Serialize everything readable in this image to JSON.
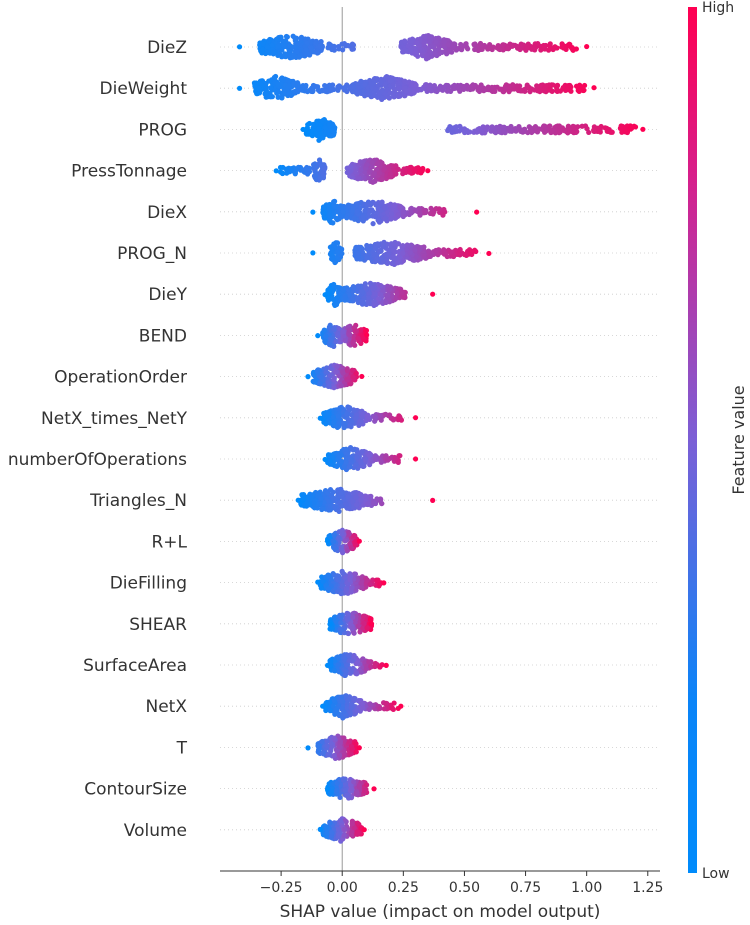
{
  "chart_data": {
    "type": "scatter",
    "subtype": "shap-beeswarm-summary",
    "xlabel": "SHAP value (impact on model output)",
    "xlim": [
      -0.5,
      1.3
    ],
    "xticks": [
      -0.25,
      0.0,
      0.25,
      0.5,
      0.75,
      1.0,
      1.25
    ],
    "xtick_labels": [
      "−0.25",
      "0.00",
      "0.25",
      "0.50",
      "0.75",
      "1.00",
      "1.25"
    ],
    "zero_line": true,
    "row_gridlines": "dotted",
    "colorbar": {
      "label": "Feature value",
      "high_label": "High",
      "low_label": "Low",
      "low_color": "#008bfb",
      "high_color": "#ff0052",
      "placement": "right"
    },
    "features": [
      {
        "name": "DieZ",
        "min": -0.42,
        "max": 1.0,
        "dense_ranges": [
          [
            -0.34,
            -0.08
          ],
          [
            0.24,
            0.45
          ]
        ],
        "sparse_ranges": [
          [
            0.45,
            0.96
          ],
          [
            -0.06,
            0.05
          ]
        ]
      },
      {
        "name": "DieWeight",
        "min": -0.42,
        "max": 1.03,
        "dense_ranges": [
          [
            -0.36,
            -0.18
          ],
          [
            0.05,
            0.3
          ]
        ],
        "sparse_ranges": [
          [
            0.3,
            1.0
          ],
          [
            -0.18,
            0.05
          ]
        ]
      },
      {
        "name": "PROG",
        "min": -0.16,
        "max": 1.23,
        "dense_ranges": [
          [
            -0.15,
            -0.03
          ]
        ],
        "sparse_ranges": [
          [
            0.43,
            1.2
          ]
        ]
      },
      {
        "name": "PressTonnage",
        "min": -0.27,
        "max": 0.35,
        "dense_ranges": [
          [
            -0.12,
            -0.07
          ],
          [
            0.02,
            0.22
          ]
        ],
        "sparse_ranges": [
          [
            -0.26,
            -0.13
          ],
          [
            0.22,
            0.33
          ]
        ]
      },
      {
        "name": "DieX",
        "min": -0.12,
        "max": 0.55,
        "dense_ranges": [
          [
            -0.08,
            0.0
          ],
          [
            0.0,
            0.25
          ]
        ],
        "sparse_ranges": [
          [
            0.25,
            0.42
          ]
        ]
      },
      {
        "name": "PROG_N",
        "min": -0.12,
        "max": 0.6,
        "dense_ranges": [
          [
            -0.05,
            0.0
          ],
          [
            0.05,
            0.35
          ]
        ],
        "sparse_ranges": [
          [
            0.35,
            0.55
          ]
        ]
      },
      {
        "name": "DieY",
        "min": -0.07,
        "max": 0.37,
        "dense_ranges": [
          [
            -0.06,
            0.0
          ],
          [
            0.0,
            0.24
          ]
        ],
        "sparse_ranges": [
          [
            0.24,
            0.26
          ]
        ]
      },
      {
        "name": "BEND",
        "min": -0.1,
        "max": 0.1,
        "dense_ranges": [
          [
            -0.08,
            0.0
          ],
          [
            0.0,
            0.1
          ]
        ],
        "sparse_ranges": []
      },
      {
        "name": "OperationOrder",
        "min": -0.14,
        "max": 0.08,
        "dense_ranges": [
          [
            -0.12,
            0.06
          ]
        ],
        "sparse_ranges": []
      },
      {
        "name": "NetX_times_NetY",
        "min": -0.09,
        "max": 0.3,
        "dense_ranges": [
          [
            -0.08,
            0.1
          ]
        ],
        "sparse_ranges": [
          [
            0.1,
            0.25
          ]
        ]
      },
      {
        "name": "numberOfOperations",
        "min": -0.07,
        "max": 0.3,
        "dense_ranges": [
          [
            -0.06,
            0.12
          ]
        ],
        "sparse_ranges": [
          [
            0.12,
            0.24
          ]
        ]
      },
      {
        "name": "Triangles_N",
        "min": -0.18,
        "max": 0.37,
        "dense_ranges": [
          [
            -0.17,
            0.12
          ]
        ],
        "sparse_ranges": [
          [
            0.12,
            0.17
          ]
        ]
      },
      {
        "name": "R+L",
        "min": -0.06,
        "max": 0.07,
        "dense_ranges": [
          [
            -0.06,
            0.06
          ]
        ],
        "sparse_ranges": []
      },
      {
        "name": "DieFilling",
        "min": -0.1,
        "max": 0.17,
        "dense_ranges": [
          [
            -0.09,
            0.1
          ]
        ],
        "sparse_ranges": [
          [
            0.1,
            0.16
          ]
        ]
      },
      {
        "name": "SHEAR",
        "min": -0.05,
        "max": 0.12,
        "dense_ranges": [
          [
            -0.05,
            0.12
          ]
        ],
        "sparse_ranges": []
      },
      {
        "name": "SurfaceArea",
        "min": -0.06,
        "max": 0.18,
        "dense_ranges": [
          [
            -0.05,
            0.1
          ]
        ],
        "sparse_ranges": [
          [
            0.1,
            0.17
          ]
        ]
      },
      {
        "name": "NetX",
        "min": -0.08,
        "max": 0.24,
        "dense_ranges": [
          [
            -0.07,
            0.08
          ]
        ],
        "sparse_ranges": [
          [
            0.08,
            0.23
          ]
        ]
      },
      {
        "name": "T",
        "min": -0.14,
        "max": 0.07,
        "dense_ranges": [
          [
            -0.1,
            0.06
          ]
        ],
        "sparse_ranges": []
      },
      {
        "name": "ContourSize",
        "min": -0.06,
        "max": 0.13,
        "dense_ranges": [
          [
            -0.06,
            0.1
          ]
        ],
        "sparse_ranges": []
      },
      {
        "name": "Volume",
        "min": -0.09,
        "max": 0.09,
        "dense_ranges": [
          [
            -0.08,
            0.08
          ]
        ],
        "sparse_ranges": []
      }
    ]
  }
}
